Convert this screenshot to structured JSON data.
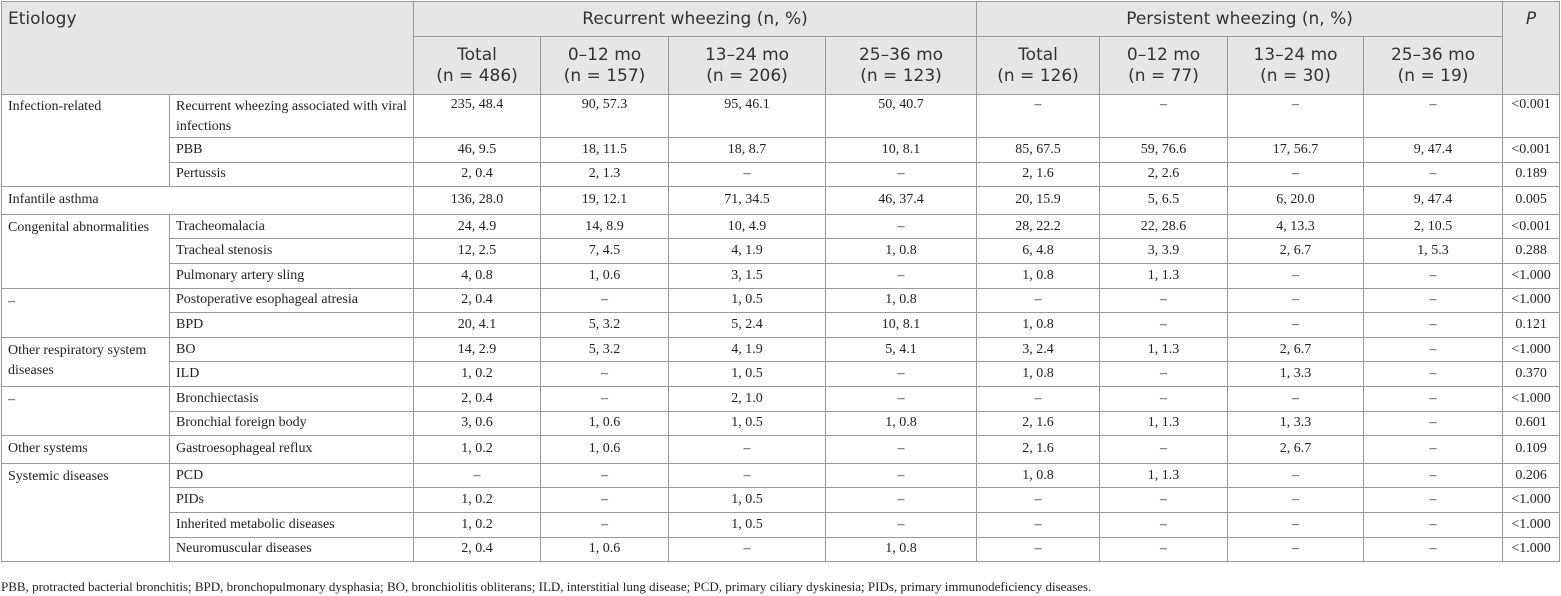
{
  "header": {
    "etiology": "Etiology",
    "recurrent": "Recurrent wheezing (n, %)",
    "persistent": "Persistent wheezing (n, %)",
    "p": "P",
    "subcolumns": [
      {
        "label": "Total",
        "n": "(n = 486)"
      },
      {
        "label": "0–12 mo",
        "n": "(n = 157)"
      },
      {
        "label": "13–24 mo",
        "n": "(n = 206)"
      },
      {
        "label": "25–36 mo",
        "n": "(n = 123)"
      },
      {
        "label": "Total",
        "n": "(n = 126)"
      },
      {
        "label": "0–12 mo",
        "n": "(n = 77)"
      },
      {
        "label": "13–24 mo",
        "n": "(n = 30)"
      },
      {
        "label": "25–36 mo",
        "n": "(n = 19)"
      }
    ]
  },
  "groups": [
    {
      "name": "Infection-related",
      "rows": [
        {
          "label": "Recurrent wheezing associated with viral infections",
          "cells": [
            "235, 48.4",
            "90, 57.3",
            "95, 46.1",
            "50, 40.7",
            "–",
            "–",
            "–",
            "–"
          ],
          "p": "<0.001"
        },
        {
          "label": "PBB",
          "cells": [
            "46, 9.5",
            "18, 11.5",
            "18, 8.7",
            "10, 8.1",
            "85, 67.5",
            "59, 76.6",
            "17, 56.7",
            "9, 47.4"
          ],
          "p": "<0.001"
        },
        {
          "label": "Pertussis",
          "cells": [
            "2, 0.4",
            "2, 1.3",
            "–",
            "–",
            "2, 1.6",
            "2, 2.6",
            "–",
            "–"
          ],
          "p": "0.189"
        }
      ]
    },
    {
      "name": "Infantile asthma",
      "rows": [
        {
          "cells": [
            "136, 28.0",
            "19, 12.1",
            "71, 34.5",
            "46, 37.4",
            "20, 15.9",
            "5, 6.5",
            "6, 20.0",
            "9, 47.4"
          ],
          "p": "0.005"
        }
      ]
    },
    {
      "name": "Congenital abnormalities",
      "rows": [
        {
          "label": "Tracheomalacia",
          "cells": [
            "24, 4.9",
            "14, 8.9",
            "10, 4.9",
            "–",
            "28, 22.2",
            "22, 28.6",
            "4, 13.3",
            "2, 10.5"
          ],
          "p": "<0.001"
        },
        {
          "label": "Tracheal stenosis",
          "cells": [
            "12, 2.5",
            "7, 4.5",
            "4, 1.9",
            "1, 0.8",
            "6, 4.8",
            "3, 3.9",
            "2, 6.7",
            "1, 5.3"
          ],
          "p": "0.288"
        },
        {
          "label": "Pulmonary artery sling",
          "cells": [
            "4, 0.8",
            "1, 0.6",
            "3, 1.5",
            "–",
            "1, 0.8",
            "1, 1.3",
            "–",
            "–"
          ],
          "p": "<1.000"
        }
      ]
    },
    {
      "name": "–",
      "rows": [
        {
          "label": "Postoperative esophageal atresia",
          "cells": [
            "2, 0.4",
            "–",
            "1, 0.5",
            "1, 0.8",
            "–",
            "–",
            "–",
            "–"
          ],
          "p": "<1.000"
        },
        {
          "label": "BPD",
          "cells": [
            "20, 4.1",
            "5, 3.2",
            "5, 2.4",
            "10, 8.1",
            "1, 0.8",
            "–",
            "–",
            "–"
          ],
          "p": "0.121"
        }
      ]
    },
    {
      "name": "Other respiratory system diseases",
      "rows": [
        {
          "label": "BO",
          "cells": [
            "14, 2.9",
            "5, 3.2",
            "4, 1.9",
            "5, 4.1",
            "3, 2.4",
            "1, 1.3",
            "2, 6.7",
            "–"
          ],
          "p": "<1.000"
        },
        {
          "label": "ILD",
          "cells": [
            "1, 0.2",
            "–",
            "1, 0.5",
            "–",
            "1, 0.8",
            "–",
            "1, 3.3",
            "–"
          ],
          "p": "0.370"
        }
      ]
    },
    {
      "name": "–",
      "rows": [
        {
          "label": "Bronchiectasis",
          "cells": [
            "2, 0.4",
            "–",
            "2, 1.0",
            "–",
            "–",
            "–",
            "–",
            "–"
          ],
          "p": "<1.000"
        },
        {
          "label": "Bronchial foreign body",
          "cells": [
            "3, 0.6",
            "1, 0.6",
            "1, 0.5",
            "1, 0.8",
            "2, 1.6",
            "1, 1.3",
            "1, 3.3",
            "–"
          ],
          "p": "0.601"
        }
      ]
    },
    {
      "name": "Other systems",
      "rows": [
        {
          "label": "Gastroesophageal reflux",
          "cells": [
            "1, 0.2",
            "1, 0.6",
            "–",
            "–",
            "2, 1.6",
            "–",
            "2, 6.7",
            "–"
          ],
          "p": "0.109"
        }
      ]
    },
    {
      "name": "Systemic diseases",
      "rows": [
        {
          "label": "PCD",
          "cells": [
            "–",
            "–",
            "–",
            "–",
            "1, 0.8",
            "1, 1.3",
            "–",
            "–"
          ],
          "p": "0.206"
        },
        {
          "label": "PIDs",
          "cells": [
            "1, 0.2",
            "–",
            "1, 0.5",
            "–",
            "–",
            "–",
            "–",
            "–"
          ],
          "p": "<1.000"
        },
        {
          "label": "Inherited metabolic diseases",
          "cells": [
            "1, 0.2",
            "–",
            "1, 0.5",
            "–",
            "–",
            "–",
            "–",
            "–"
          ],
          "p": "<1.000"
        },
        {
          "label": "Neuromuscular diseases",
          "cells": [
            "2, 0.4",
            "1, 0.6",
            "–",
            "1, 0.8",
            "–",
            "–",
            "–",
            "–"
          ],
          "p": "<1.000"
        }
      ]
    }
  ],
  "footnote": "PBB, protracted bacterial bronchitis; BPD, bronchopulmonary dysphasia; BO, bronchiolitis obliterans; ILD, interstitial lung disease; PCD, primary ciliary dyskinesia; PIDs, primary immunodeficiency diseases."
}
